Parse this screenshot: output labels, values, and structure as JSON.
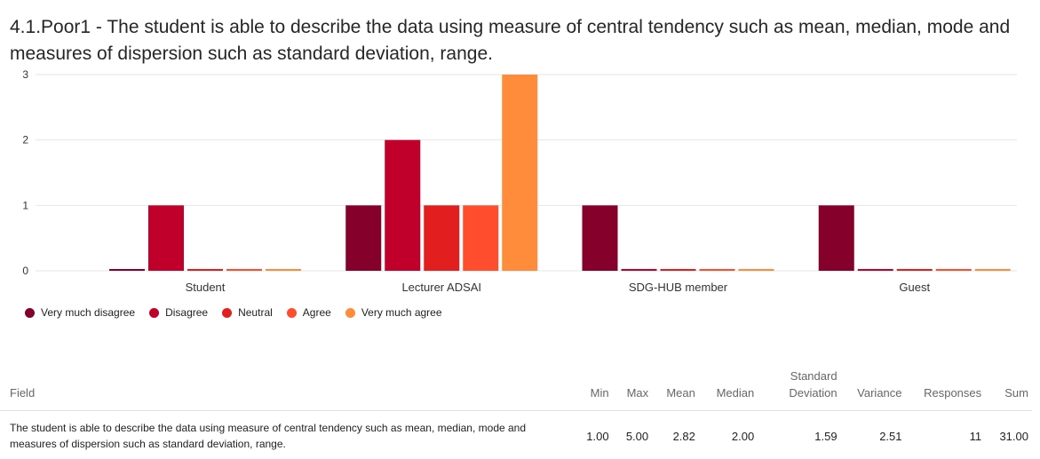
{
  "title": "4.1.Poor1 - The student is able to describe the data using measure of central tendency such as mean, median, mode and measures of dispersion such as standard deviation, range.",
  "chart_data": {
    "type": "bar",
    "categories": [
      "Student",
      "Lecturer ADSAI",
      "SDG-HUB member",
      "Guest"
    ],
    "series": [
      {
        "name": "Very much disagree",
        "color": "#85002a",
        "values": [
          0,
          1,
          1,
          1
        ]
      },
      {
        "name": "Disagree",
        "color": "#c0002a",
        "values": [
          1,
          2,
          0,
          0
        ]
      },
      {
        "name": "Neutral",
        "color": "#e31e1e",
        "values": [
          0,
          1,
          0,
          0
        ]
      },
      {
        "name": "Agree",
        "color": "#ff4d2e",
        "values": [
          0,
          1,
          0,
          0
        ]
      },
      {
        "name": "Very much agree",
        "color": "#ff8c3a",
        "values": [
          0,
          3,
          0,
          0
        ]
      }
    ],
    "y_ticks": [
      "0",
      "1",
      "2",
      "3"
    ],
    "ylim": [
      0,
      3
    ],
    "grid": true,
    "legend_position": "bottom-left"
  },
  "stats_table": {
    "headers": {
      "field": "Field",
      "min": "Min",
      "max": "Max",
      "mean": "Mean",
      "median": "Median",
      "std_line1": "Standard",
      "std_line2": "Deviation",
      "variance": "Variance",
      "responses": "Responses",
      "sum": "Sum"
    },
    "row": {
      "field": "The student is able to describe the data using measure of central tendency such as mean, median, mode and measures of dispersion such as standard deviation, range.",
      "min": "1.00",
      "max": "5.00",
      "mean": "2.82",
      "median": "2.00",
      "std": "1.59",
      "variance": "2.51",
      "responses": "11",
      "sum": "31.00"
    }
  }
}
